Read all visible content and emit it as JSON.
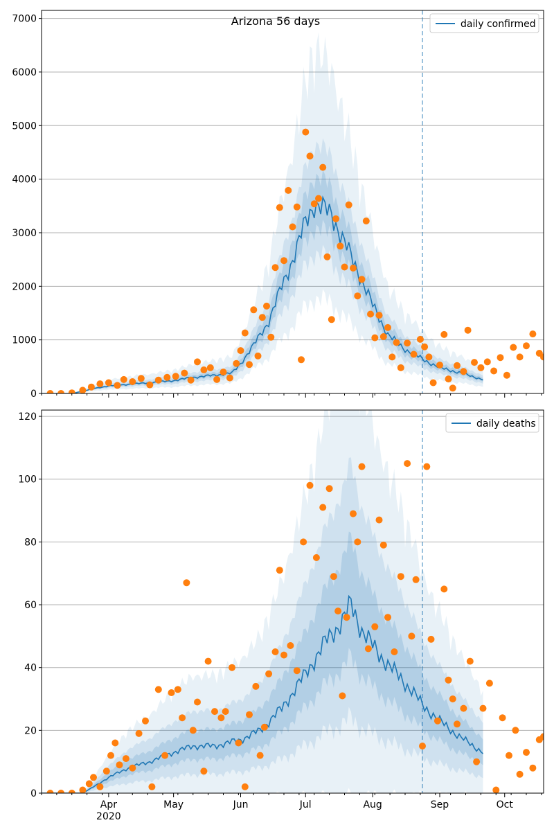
{
  "figure_title": "Arizona 56 days",
  "colors": {
    "model_line": "#1f77b4",
    "observed_points": "#ff7f0e",
    "band": "#1f77b4",
    "grid": "#b0b0b0",
    "vline": "#1f77b4"
  },
  "chart_data": [
    {
      "type": "line",
      "panel": "top",
      "title": "Arizona 56 days",
      "legend": {
        "label": "daily confirmed",
        "position": "top-right"
      },
      "xlabel": "",
      "ylabel": "",
      "x_start": "2020-03-01",
      "x_end": "2020-10-19",
      "forecast_date": "2020-08-24",
      "model_end": "2020-09-21",
      "ylim": [
        0,
        7150
      ],
      "yticks": [
        0,
        1000,
        2000,
        3000,
        4000,
        5000,
        6000,
        7000
      ],
      "grid": "horizontal",
      "xticks": [
        {
          "date": "2020-04-01",
          "label": "Apr",
          "sublabel": "2020"
        },
        {
          "date": "2020-05-01",
          "label": "May"
        },
        {
          "date": "2020-06-01",
          "label": "Jun"
        },
        {
          "date": "2020-07-01",
          "label": "Jul"
        },
        {
          "date": "2020-08-01",
          "label": "Aug"
        },
        {
          "date": "2020-09-01",
          "label": "Sep"
        },
        {
          "date": "2020-10-01",
          "label": "Oct"
        }
      ],
      "model_median_knots": [
        [
          "2020-03-01",
          0
        ],
        [
          "2020-03-15",
          0
        ],
        [
          "2020-03-20",
          40
        ],
        [
          "2020-03-25",
          90
        ],
        [
          "2020-04-01",
          140
        ],
        [
          "2020-04-10",
          170
        ],
        [
          "2020-04-20",
          200
        ],
        [
          "2020-05-01",
          240
        ],
        [
          "2020-05-10",
          300
        ],
        [
          "2020-05-20",
          340
        ],
        [
          "2020-05-28",
          380
        ],
        [
          "2020-06-01",
          560
        ],
        [
          "2020-06-07",
          900
        ],
        [
          "2020-06-14",
          1350
        ],
        [
          "2020-06-20",
          2000
        ],
        [
          "2020-06-26",
          2600
        ],
        [
          "2020-07-01",
          3200
        ],
        [
          "2020-07-05",
          3550
        ],
        [
          "2020-07-09",
          3450
        ],
        [
          "2020-07-13",
          3350
        ],
        [
          "2020-07-18",
          2900
        ],
        [
          "2020-07-25",
          2300
        ],
        [
          "2020-08-01",
          1650
        ],
        [
          "2020-08-08",
          1100
        ],
        [
          "2020-08-15",
          850
        ],
        [
          "2020-08-24",
          640
        ],
        [
          "2020-09-01",
          480
        ],
        [
          "2020-09-10",
          390
        ],
        [
          "2020-09-21",
          260
        ]
      ],
      "band_inner_halfwidth_fraction": 0.15,
      "band_middle_halfwidth_fraction": 0.32,
      "band_outer_halfwidth_fraction": 0.62,
      "observed_points": [
        [
          "2020-03-05",
          0
        ],
        [
          "2020-03-10",
          0
        ],
        [
          "2020-03-15",
          10
        ],
        [
          "2020-03-20",
          60
        ],
        [
          "2020-03-24",
          120
        ],
        [
          "2020-03-28",
          180
        ],
        [
          "2020-04-01",
          200
        ],
        [
          "2020-04-05",
          150
        ],
        [
          "2020-04-08",
          260
        ],
        [
          "2020-04-12",
          220
        ],
        [
          "2020-04-16",
          280
        ],
        [
          "2020-04-20",
          160
        ],
        [
          "2020-04-24",
          250
        ],
        [
          "2020-04-28",
          300
        ],
        [
          "2020-05-02",
          320
        ],
        [
          "2020-05-06",
          380
        ],
        [
          "2020-05-09",
          250
        ],
        [
          "2020-05-12",
          590
        ],
        [
          "2020-05-15",
          440
        ],
        [
          "2020-05-18",
          480
        ],
        [
          "2020-05-21",
          260
        ],
        [
          "2020-05-24",
          400
        ],
        [
          "2020-05-27",
          290
        ],
        [
          "2020-05-30",
          560
        ],
        [
          "2020-06-01",
          800
        ],
        [
          "2020-06-03",
          1130
        ],
        [
          "2020-06-05",
          540
        ],
        [
          "2020-06-07",
          1560
        ],
        [
          "2020-06-09",
          700
        ],
        [
          "2020-06-11",
          1420
        ],
        [
          "2020-06-13",
          1630
        ],
        [
          "2020-06-15",
          1050
        ],
        [
          "2020-06-17",
          2350
        ],
        [
          "2020-06-19",
          3470
        ],
        [
          "2020-06-21",
          2480
        ],
        [
          "2020-06-23",
          3790
        ],
        [
          "2020-06-25",
          3110
        ],
        [
          "2020-06-27",
          3480
        ],
        [
          "2020-06-29",
          630
        ],
        [
          "2020-07-01",
          4880
        ],
        [
          "2020-07-03",
          4430
        ],
        [
          "2020-07-05",
          3540
        ],
        [
          "2020-07-07",
          3640
        ],
        [
          "2020-07-09",
          4220
        ],
        [
          "2020-07-11",
          2550
        ],
        [
          "2020-07-13",
          1380
        ],
        [
          "2020-07-15",
          3260
        ],
        [
          "2020-07-17",
          2750
        ],
        [
          "2020-07-19",
          2360
        ],
        [
          "2020-07-21",
          3520
        ],
        [
          "2020-07-23",
          2340
        ],
        [
          "2020-07-25",
          1820
        ],
        [
          "2020-07-27",
          2130
        ],
        [
          "2020-07-29",
          3220
        ],
        [
          "2020-07-31",
          1480
        ],
        [
          "2020-08-02",
          1040
        ],
        [
          "2020-08-04",
          1460
        ],
        [
          "2020-08-06",
          1060
        ],
        [
          "2020-08-08",
          1230
        ],
        [
          "2020-08-10",
          680
        ],
        [
          "2020-08-12",
          950
        ],
        [
          "2020-08-14",
          480
        ],
        [
          "2020-08-17",
          940
        ],
        [
          "2020-08-20",
          730
        ],
        [
          "2020-08-23",
          1010
        ],
        [
          "2020-08-25",
          870
        ],
        [
          "2020-08-27",
          680
        ],
        [
          "2020-08-29",
          200
        ],
        [
          "2020-09-01",
          530
        ],
        [
          "2020-09-03",
          1100
        ],
        [
          "2020-09-05",
          270
        ],
        [
          "2020-09-07",
          100
        ],
        [
          "2020-09-09",
          520
        ],
        [
          "2020-09-12",
          410
        ],
        [
          "2020-09-14",
          1180
        ],
        [
          "2020-09-17",
          580
        ],
        [
          "2020-09-20",
          480
        ],
        [
          "2020-09-23",
          590
        ],
        [
          "2020-09-26",
          420
        ],
        [
          "2020-09-29",
          670
        ],
        [
          "2020-10-02",
          340
        ],
        [
          "2020-10-05",
          860
        ],
        [
          "2020-10-08",
          680
        ],
        [
          "2020-10-11",
          890
        ],
        [
          "2020-10-14",
          1110
        ],
        [
          "2020-10-17",
          750
        ],
        [
          "2020-10-19",
          680
        ]
      ]
    },
    {
      "type": "line",
      "panel": "bottom",
      "title": "",
      "legend": {
        "label": "daily deaths",
        "position": "top-right"
      },
      "xlabel": "",
      "ylabel": "",
      "x_start": "2020-03-01",
      "x_end": "2020-10-19",
      "forecast_date": "2020-08-24",
      "model_end": "2020-09-21",
      "ylim": [
        0,
        122
      ],
      "yticks": [
        0,
        20,
        40,
        60,
        80,
        100,
        120
      ],
      "grid": "horizontal",
      "xticks": [
        {
          "date": "2020-04-01",
          "label": "Apr",
          "sublabel": "2020"
        },
        {
          "date": "2020-05-01",
          "label": "May"
        },
        {
          "date": "2020-06-01",
          "label": "Jun"
        },
        {
          "date": "2020-07-01",
          "label": "Jul"
        },
        {
          "date": "2020-08-01",
          "label": "Aug"
        },
        {
          "date": "2020-09-01",
          "label": "Sep"
        },
        {
          "date": "2020-10-01",
          "label": "Oct"
        }
      ],
      "model_median_knots": [
        [
          "2020-03-01",
          0
        ],
        [
          "2020-03-20",
          0
        ],
        [
          "2020-03-25",
          2
        ],
        [
          "2020-04-01",
          5
        ],
        [
          "2020-04-10",
          8
        ],
        [
          "2020-04-20",
          10
        ],
        [
          "2020-05-01",
          13
        ],
        [
          "2020-05-10",
          15
        ],
        [
          "2020-05-20",
          15
        ],
        [
          "2020-06-01",
          17
        ],
        [
          "2020-06-10",
          20
        ],
        [
          "2020-06-20",
          27
        ],
        [
          "2020-07-01",
          38
        ],
        [
          "2020-07-10",
          48
        ],
        [
          "2020-07-18",
          55
        ],
        [
          "2020-07-22",
          60
        ],
        [
          "2020-07-27",
          52
        ],
        [
          "2020-08-03",
          45
        ],
        [
          "2020-08-12",
          38
        ],
        [
          "2020-08-20",
          32
        ],
        [
          "2020-08-24",
          28
        ],
        [
          "2020-09-01",
          23
        ],
        [
          "2020-09-10",
          18
        ],
        [
          "2020-09-21",
          13
        ]
      ],
      "band_inner_halfwidth_fraction": 0.35,
      "band_middle_halfwidth_fraction": 0.75,
      "band_outer_halfwidth_fraction": 1.3,
      "observed_points": [
        [
          "2020-03-05",
          0
        ],
        [
          "2020-03-10",
          0
        ],
        [
          "2020-03-15",
          0
        ],
        [
          "2020-03-20",
          1
        ],
        [
          "2020-03-23",
          3
        ],
        [
          "2020-03-25",
          5
        ],
        [
          "2020-03-28",
          2
        ],
        [
          "2020-03-31",
          7
        ],
        [
          "2020-04-02",
          12
        ],
        [
          "2020-04-04",
          16
        ],
        [
          "2020-04-06",
          9
        ],
        [
          "2020-04-09",
          11
        ],
        [
          "2020-04-12",
          8
        ],
        [
          "2020-04-15",
          19
        ],
        [
          "2020-04-18",
          23
        ],
        [
          "2020-04-21",
          2
        ],
        [
          "2020-04-24",
          33
        ],
        [
          "2020-04-27",
          12
        ],
        [
          "2020-04-30",
          32
        ],
        [
          "2020-05-03",
          33
        ],
        [
          "2020-05-05",
          24
        ],
        [
          "2020-05-07",
          67
        ],
        [
          "2020-05-10",
          20
        ],
        [
          "2020-05-12",
          29
        ],
        [
          "2020-05-15",
          7
        ],
        [
          "2020-05-17",
          42
        ],
        [
          "2020-05-20",
          26
        ],
        [
          "2020-05-23",
          24
        ],
        [
          "2020-05-25",
          26
        ],
        [
          "2020-05-28",
          40
        ],
        [
          "2020-05-31",
          16
        ],
        [
          "2020-06-03",
          2
        ],
        [
          "2020-06-05",
          25
        ],
        [
          "2020-06-08",
          34
        ],
        [
          "2020-06-10",
          12
        ],
        [
          "2020-06-12",
          21
        ],
        [
          "2020-06-14",
          38
        ],
        [
          "2020-06-17",
          45
        ],
        [
          "2020-06-19",
          71
        ],
        [
          "2020-06-21",
          44
        ],
        [
          "2020-06-24",
          47
        ],
        [
          "2020-06-27",
          39
        ],
        [
          "2020-06-30",
          80
        ],
        [
          "2020-07-03",
          98
        ],
        [
          "2020-07-06",
          75
        ],
        [
          "2020-07-09",
          91
        ],
        [
          "2020-07-12",
          97
        ],
        [
          "2020-07-14",
          69
        ],
        [
          "2020-07-16",
          58
        ],
        [
          "2020-07-18",
          31
        ],
        [
          "2020-07-20",
          56
        ],
        [
          "2020-07-23",
          89
        ],
        [
          "2020-07-25",
          80
        ],
        [
          "2020-07-27",
          104
        ],
        [
          "2020-07-30",
          46
        ],
        [
          "2020-08-02",
          53
        ],
        [
          "2020-08-04",
          87
        ],
        [
          "2020-08-06",
          79
        ],
        [
          "2020-08-08",
          56
        ],
        [
          "2020-08-11",
          45
        ],
        [
          "2020-08-14",
          69
        ],
        [
          "2020-08-17",
          105
        ],
        [
          "2020-08-19",
          50
        ],
        [
          "2020-08-21",
          68
        ],
        [
          "2020-08-24",
          15
        ],
        [
          "2020-08-26",
          104
        ],
        [
          "2020-08-28",
          49
        ],
        [
          "2020-08-31",
          23
        ],
        [
          "2020-09-03",
          65
        ],
        [
          "2020-09-05",
          36
        ],
        [
          "2020-09-07",
          30
        ],
        [
          "2020-09-09",
          22
        ],
        [
          "2020-09-12",
          27
        ],
        [
          "2020-09-15",
          42
        ],
        [
          "2020-09-18",
          10
        ],
        [
          "2020-09-21",
          27
        ],
        [
          "2020-09-24",
          35
        ],
        [
          "2020-09-27",
          1
        ],
        [
          "2020-09-30",
          24
        ],
        [
          "2020-10-03",
          12
        ],
        [
          "2020-10-06",
          20
        ],
        [
          "2020-10-08",
          6
        ],
        [
          "2020-10-11",
          13
        ],
        [
          "2020-10-14",
          8
        ],
        [
          "2020-10-17",
          17
        ],
        [
          "2020-10-19",
          18
        ]
      ]
    }
  ]
}
